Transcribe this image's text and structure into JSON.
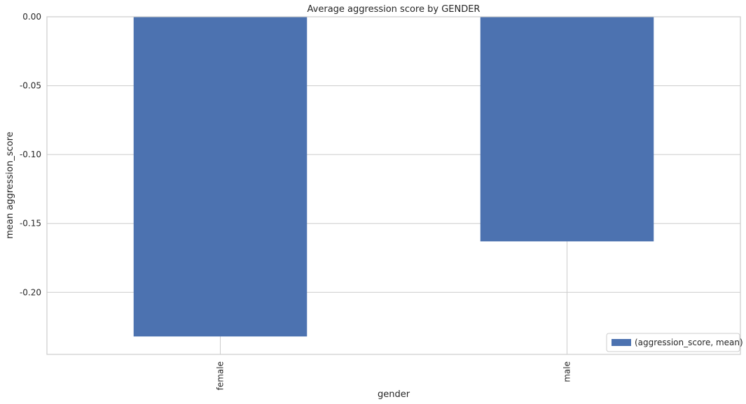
{
  "chart_data": {
    "type": "bar",
    "title": "Average aggression score by GENDER",
    "xlabel": "gender",
    "ylabel": "mean aggression_score",
    "categories": [
      "female",
      "male"
    ],
    "series": [
      {
        "name": "(aggression_score, mean)",
        "values": [
          -0.232,
          -0.163
        ],
        "color": "#4c72b0"
      }
    ],
    "ylim": [
      -0.245,
      0.0
    ],
    "yticks": [
      0.0,
      -0.05,
      -0.1,
      -0.15,
      -0.2
    ],
    "ytick_labels": [
      "0.00",
      "-0.05",
      "-0.10",
      "-0.15",
      "-0.20"
    ],
    "grid": true,
    "legend_position": "bottom-right",
    "xtick_rotation": "vertical"
  }
}
